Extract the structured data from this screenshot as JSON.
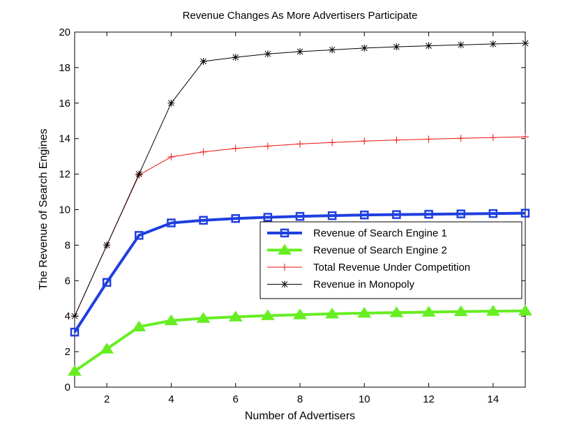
{
  "chart_data": {
    "type": "line",
    "title": "Revenue Changes As More Advertisers Participate",
    "xlabel": "Number of Advertisers",
    "ylabel": "The Revenue of Search Engines",
    "xlim": [
      1,
      15
    ],
    "ylim": [
      0,
      20
    ],
    "xticks": [
      2,
      4,
      6,
      8,
      10,
      12,
      14
    ],
    "yticks": [
      0,
      2,
      4,
      6,
      8,
      10,
      12,
      14,
      16,
      18,
      20
    ],
    "grid": false,
    "legend_position": "center-right",
    "x": [
      1,
      2,
      3,
      4,
      5,
      6,
      7,
      8,
      9,
      10,
      11,
      12,
      13,
      14,
      15
    ],
    "series": [
      {
        "name": "Revenue of Search Engine 1",
        "color": "#1f3fe0",
        "marker": "square",
        "line_width": "thick",
        "values": [
          3.1,
          5.9,
          8.55,
          9.25,
          9.4,
          9.5,
          9.57,
          9.62,
          9.66,
          9.7,
          9.72,
          9.74,
          9.76,
          9.78,
          9.8
        ]
      },
      {
        "name": "Revenue of Search Engine 2",
        "color": "#66ee22",
        "marker": "triangle",
        "line_width": "thick",
        "values": [
          0.9,
          2.15,
          3.4,
          3.75,
          3.88,
          3.96,
          4.03,
          4.08,
          4.13,
          4.17,
          4.2,
          4.23,
          4.26,
          4.28,
          4.3
        ]
      },
      {
        "name": "Total Revenue Under Competition",
        "color": "#ee1111",
        "marker": "plus",
        "line_width": "thin",
        "values": [
          4.0,
          8.0,
          11.95,
          12.97,
          13.25,
          13.45,
          13.58,
          13.7,
          13.78,
          13.86,
          13.92,
          13.97,
          14.02,
          14.06,
          14.1
        ]
      },
      {
        "name": "Revenue in Monopoly",
        "color": "#000000",
        "marker": "asterisk",
        "line_width": "thin",
        "values": [
          4.0,
          8.0,
          12.0,
          16.0,
          18.35,
          18.58,
          18.77,
          18.9,
          19.0,
          19.1,
          19.17,
          19.23,
          19.28,
          19.33,
          19.37
        ]
      }
    ]
  }
}
